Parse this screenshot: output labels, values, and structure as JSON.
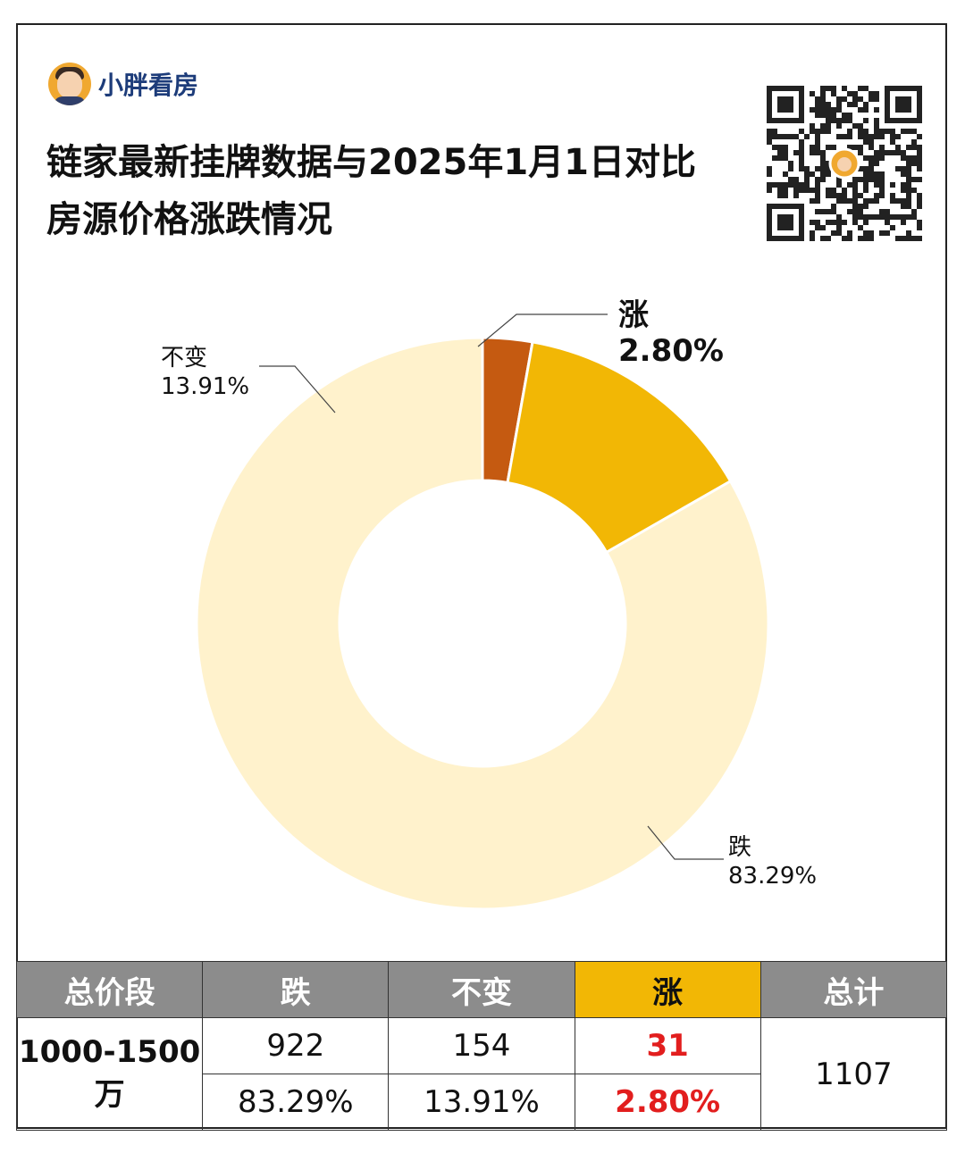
{
  "brand": {
    "name": "小胖看房"
  },
  "title": {
    "line1": "链家最新挂牌数据与2025年1月1日对比",
    "line2": "房源价格涨跌情况"
  },
  "colors": {
    "down": "#fff2cc",
    "flat": "#f2b705",
    "up": "#c55a11",
    "up_text": "#e21e1e",
    "header_gray": "#8c8c8c"
  },
  "chart_data": {
    "type": "pie",
    "title": "链家最新挂牌数据与2025年1月1日对比 房源价格涨跌情况",
    "start": "12 o'clock, clockwise",
    "slices": [
      {
        "name": "跌",
        "value": 83.29,
        "label": "83.29%",
        "color": "#fff2cc"
      },
      {
        "name": "不变",
        "value": 13.91,
        "label": "13.91%",
        "color": "#f2b705"
      },
      {
        "name": "涨",
        "value": 2.8,
        "label": "2.80%",
        "color": "#c55a11"
      }
    ]
  },
  "table": {
    "headers": [
      "总价段",
      "跌",
      "不变",
      "涨",
      "总计"
    ],
    "segment": "1000-1500万",
    "counts": {
      "down": "922",
      "flat": "154",
      "up": "31"
    },
    "percents": {
      "down": "83.29%",
      "flat": "13.91%",
      "up": "2.80%"
    },
    "total": "1107"
  }
}
